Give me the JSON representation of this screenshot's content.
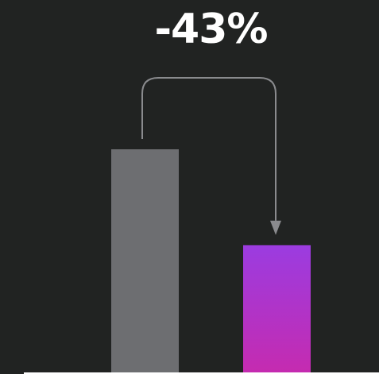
{
  "change_label": "-43%",
  "colors": {
    "background": "#212322",
    "bar_before": "#6d6e71",
    "bar_after_top": "#9b3ce0",
    "bar_after_bottom": "#c52bb0",
    "arrow": "#8a8b8e",
    "baseline": "#ffffff"
  },
  "chart_data": {
    "type": "bar",
    "categories": [
      "",
      ""
    ],
    "values": [
      100,
      57
    ],
    "title": "",
    "xlabel": "",
    "ylabel": "",
    "ylim": [
      0,
      100
    ],
    "grid": false,
    "annotation": {
      "text": "-43%",
      "from_index": 0,
      "to_index": 1
    }
  }
}
